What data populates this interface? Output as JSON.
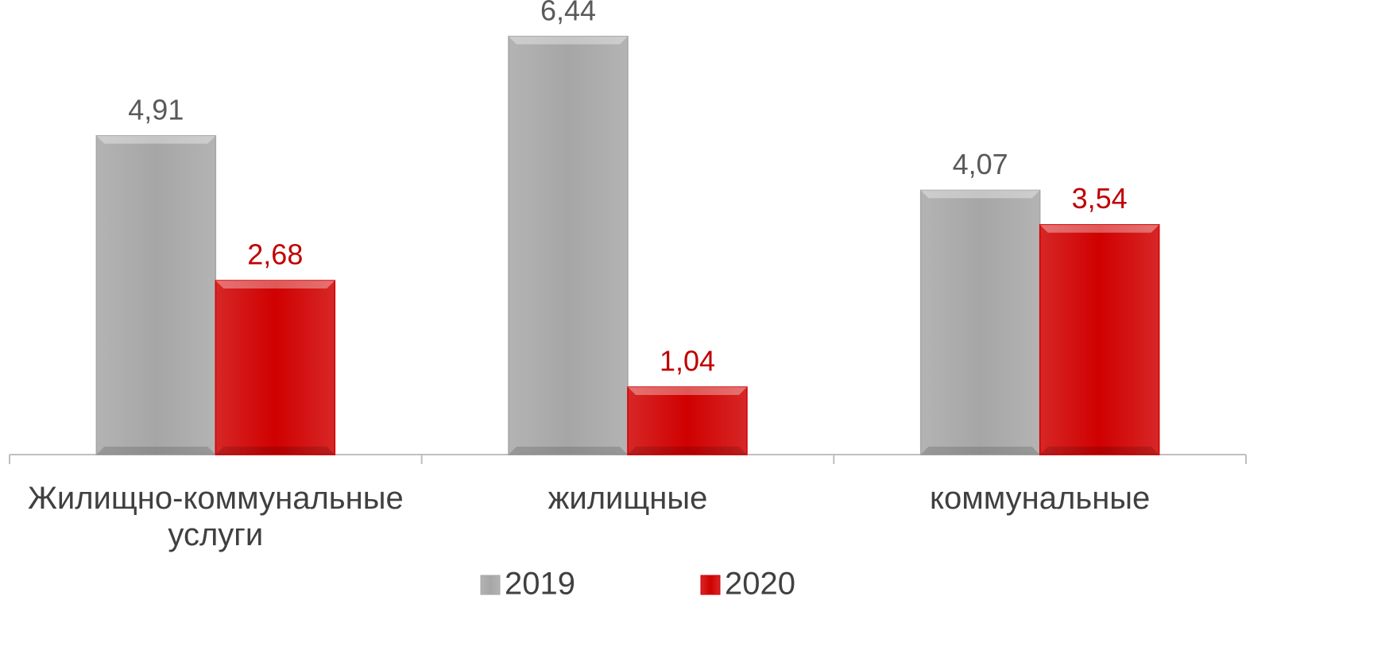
{
  "chart_data": {
    "type": "bar",
    "categories": [
      "Жилищно-коммунальные услуги",
      "жилищные",
      "коммунальные"
    ],
    "series": [
      {
        "name": "2019",
        "color": "#a6a6a6",
        "label_color": "#595959",
        "values": [
          4.91,
          6.44,
          4.07
        ],
        "value_labels": [
          "4,91",
          "6,44",
          "4,07"
        ]
      },
      {
        "name": "2020",
        "color": "#d00000",
        "label_color": "#c00000",
        "values": [
          2.68,
          1.04,
          3.54
        ],
        "value_labels": [
          "2,68",
          "1,04",
          "3,54"
        ]
      }
    ],
    "ylim": [
      0,
      7
    ],
    "legend": "bottom"
  }
}
